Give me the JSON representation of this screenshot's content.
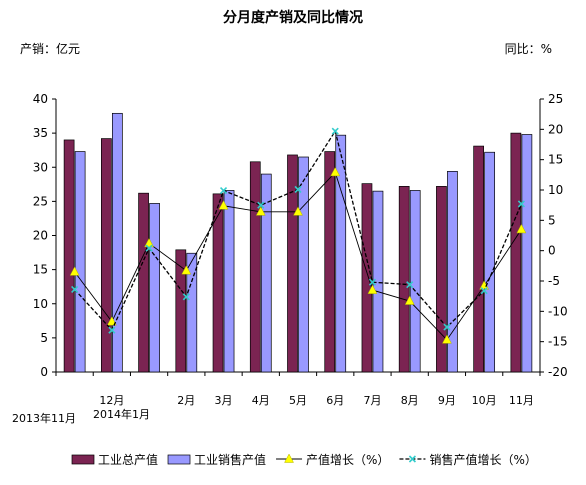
{
  "chart_data": {
    "type": "bar+line",
    "title": "分月度产销及同比情况",
    "left_unit_label": "产销：亿元",
    "right_unit_label": "同比：%",
    "left_axis": {
      "min": 0,
      "max": 40,
      "step": 5
    },
    "right_axis": {
      "min": -20,
      "max": 25,
      "step": 5
    },
    "grid": false,
    "legend_position": "bottom",
    "categories": [
      "2013年11月",
      "12月",
      "2014年1月",
      "2月",
      "3月",
      "4月",
      "5月",
      "6月",
      "7月",
      "8月",
      "9月",
      "10月",
      "11月"
    ],
    "series": [
      {
        "name": "工业总产值",
        "kind": "bar",
        "axis": "left",
        "color": "#7b2452",
        "values": [
          34.0,
          34.2,
          26.2,
          17.9,
          26.1,
          30.8,
          31.8,
          32.3,
          27.6,
          27.2,
          27.2,
          33.1,
          35.0
        ]
      },
      {
        "name": "工业销售产值",
        "kind": "bar",
        "axis": "left",
        "color": "#9999ff",
        "values": [
          32.3,
          37.9,
          24.7,
          17.4,
          26.6,
          29.0,
          31.5,
          34.7,
          26.5,
          26.6,
          29.4,
          32.2,
          34.8
        ]
      },
      {
        "name": "产值增长（%）",
        "kind": "line",
        "axis": "right",
        "color": "#000000",
        "marker": "triangle",
        "marker_color": "#ffff00",
        "values": [
          -3.5,
          -11.7,
          1.2,
          -3.3,
          7.4,
          6.4,
          6.4,
          12.9,
          -6.5,
          -8.3,
          -14.7,
          -5.8,
          3.5
        ]
      },
      {
        "name": "销售产值增长（%）",
        "kind": "line",
        "axis": "right",
        "color": "#000000",
        "dash": true,
        "marker": "x",
        "marker_color": "#33cccc",
        "values": [
          -6.4,
          -13.1,
          0.4,
          -7.6,
          9.9,
          7.5,
          10.1,
          19.7,
          -5.2,
          -5.6,
          -12.6,
          -6.6,
          7.7
        ]
      }
    ],
    "x_tick_labels": [
      {
        "text": "2013年11月",
        "row": 3
      },
      {
        "text": "12月",
        "row": 1
      },
      {
        "text": "2014年1月",
        "row": 2
      },
      {
        "text": "2月",
        "row": 1
      },
      {
        "text": "3月",
        "row": 1
      },
      {
        "text": "4月",
        "row": 1
      },
      {
        "text": "5月",
        "row": 1
      },
      {
        "text": "6月",
        "row": 1
      },
      {
        "text": "7月",
        "row": 1
      },
      {
        "text": "8月",
        "row": 1
      },
      {
        "text": "9月",
        "row": 1
      },
      {
        "text": "10月",
        "row": 1
      },
      {
        "text": "11月",
        "row": 1
      }
    ]
  }
}
